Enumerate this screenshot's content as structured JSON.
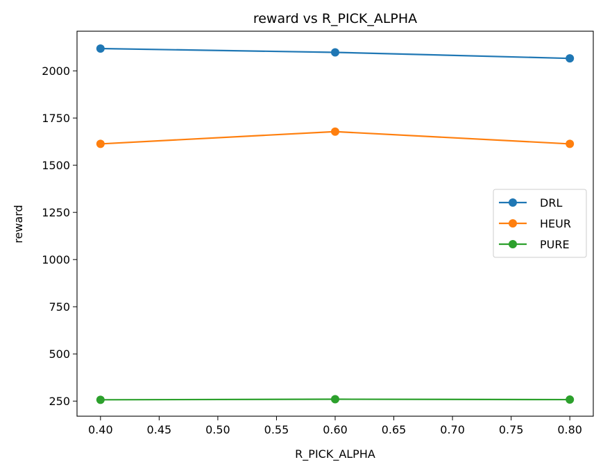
{
  "chart_data": {
    "type": "line",
    "title": "reward vs R_PICK_ALPHA",
    "xlabel": "R_PICK_ALPHA",
    "ylabel": "reward",
    "x": [
      0.4,
      0.6,
      0.8
    ],
    "xlim": [
      0.38,
      0.82
    ],
    "ylim": [
      170,
      2210
    ],
    "xticks": [
      "0.40",
      "0.45",
      "0.50",
      "0.55",
      "0.60",
      "0.65",
      "0.70",
      "0.75",
      "0.80"
    ],
    "yticks": [
      "250",
      "500",
      "750",
      "1000",
      "1250",
      "1500",
      "1750",
      "2000"
    ],
    "grid": false,
    "legend_position": "center-right",
    "series": [
      {
        "name": "DRL",
        "color": "#1f77b4",
        "values": [
          2118,
          2098,
          2066
        ]
      },
      {
        "name": "HEUR",
        "color": "#ff7f0e",
        "values": [
          1613,
          1678,
          1613
        ]
      },
      {
        "name": "PURE",
        "color": "#2ca02c",
        "values": [
          257,
          260,
          258
        ]
      }
    ]
  }
}
